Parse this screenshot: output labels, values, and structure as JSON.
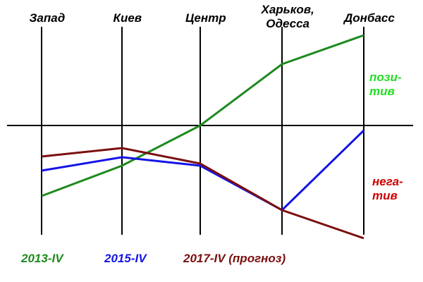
{
  "chart_data": {
    "type": "line",
    "categories": [
      "Запад",
      "Киев",
      "Центр",
      "Харьков,\nОдесса",
      "Донбасс"
    ],
    "series": [
      {
        "name": "2013-IV",
        "color": "#1e8a1e",
        "values": [
          -100,
          -57,
          0,
          87,
          128
        ]
      },
      {
        "name": "2015-IV",
        "color": "#1414e6",
        "values": [
          -64,
          -45,
          -57,
          -120,
          -7
        ]
      },
      {
        "name": "2017-IV (прогноз)",
        "color": "#7a0f0f",
        "values": [
          -44,
          -32,
          -54,
          -120,
          -160
        ]
      }
    ],
    "ylim": [
      -160,
      140
    ],
    "annotations": [
      {
        "text": "пози-\nтив",
        "color": "#22dd22"
      },
      {
        "text": "нега-\nтив",
        "color": "#cc0000"
      }
    ]
  }
}
